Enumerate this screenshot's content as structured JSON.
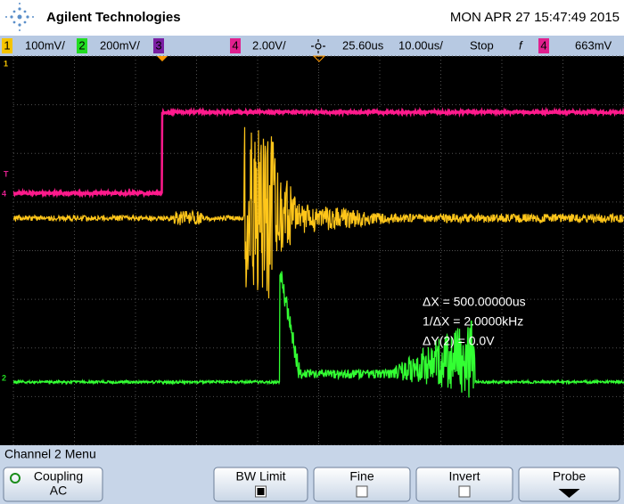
{
  "header": {
    "brand": "Agilent Technologies",
    "datetime": "MON APR 27 15:47:49 2015"
  },
  "status_bar": {
    "ch1_label": "1",
    "ch1_scale": "100mV/",
    "ch2_label": "2",
    "ch2_scale": "200mV/",
    "ch3_label": "3",
    "ch4_label": "4",
    "ch4_scale": "2.00V/",
    "delay": "25.60us",
    "timebase": "10.00us/",
    "run_state": "Stop",
    "trigger_slope": "f",
    "trigger_source": "4",
    "trigger_level": "663mV"
  },
  "markers": {
    "ch1": "1",
    "trigger": "T",
    "ch4": "4",
    "ch2": "2"
  },
  "measurements": [
    "ΔX = 500.00000us",
    "1/ΔX = 2.0000kHz",
    "ΔY(2) = 0.0V"
  ],
  "menu": {
    "title": "Channel 2 Menu",
    "softkeys": [
      {
        "label": "Coupling",
        "value": "AC"
      },
      {
        "label": "BW Limit",
        "checked": true
      },
      {
        "label": "Fine",
        "checked": false
      },
      {
        "label": "Invert",
        "checked": false
      },
      {
        "label": "Probe"
      }
    ]
  }
}
